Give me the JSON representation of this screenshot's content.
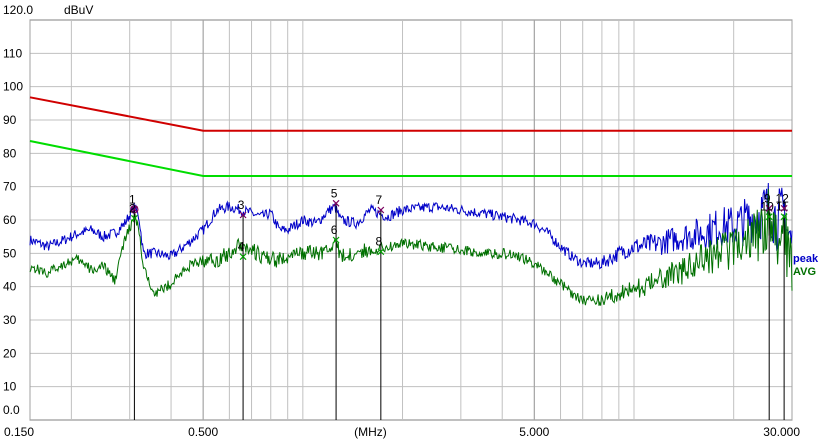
{
  "chart_data": {
    "type": "line",
    "ylabel": "dBuV",
    "xlabel": "(MHz)",
    "x_scale": "log",
    "xlim": [
      0.15,
      30.0
    ],
    "ylim": [
      0.0,
      120.0
    ],
    "y_ticks": [
      "0.0",
      "10",
      "20",
      "30",
      "40",
      "50",
      "60",
      "70",
      "80",
      "90",
      "100",
      "110",
      "120.0"
    ],
    "x_tick_labels": [
      {
        "value": 0.15,
        "label": "0.150"
      },
      {
        "value": 0.5,
        "label": "0.500"
      },
      {
        "value": 1.6,
        "label": "(MHz)"
      },
      {
        "value": 5.0,
        "label": "5.000"
      },
      {
        "value": 30.0,
        "label": "30.000"
      }
    ],
    "grid": true,
    "limits": [
      {
        "color": "#d00000",
        "points": [
          [
            0.15,
            96.8
          ],
          [
            0.5,
            86.8
          ],
          [
            30.0,
            86.8
          ]
        ]
      },
      {
        "color": "#00dd00",
        "points": [
          [
            0.15,
            83.7
          ],
          [
            0.5,
            73.2
          ],
          [
            30.0,
            73.2
          ]
        ]
      }
    ],
    "series": [
      {
        "name": "peak",
        "color": "#0000c8",
        "points": [
          [
            0.15,
            54
          ],
          [
            0.17,
            52
          ],
          [
            0.19,
            54
          ],
          [
            0.21,
            56
          ],
          [
            0.23,
            57
          ],
          [
            0.25,
            55
          ],
          [
            0.27,
            56
          ],
          [
            0.29,
            59
          ],
          [
            0.31,
            64
          ],
          [
            0.32,
            61
          ],
          [
            0.33,
            50
          ],
          [
            0.36,
            50
          ],
          [
            0.4,
            49
          ],
          [
            0.45,
            53
          ],
          [
            0.5,
            57
          ],
          [
            0.55,
            63
          ],
          [
            0.6,
            64
          ],
          [
            0.65,
            63
          ],
          [
            0.7,
            62
          ],
          [
            0.75,
            61
          ],
          [
            0.8,
            62
          ],
          [
            0.85,
            57
          ],
          [
            0.9,
            57
          ],
          [
            1.0,
            60
          ],
          [
            1.1,
            59
          ],
          [
            1.2,
            63
          ],
          [
            1.25,
            64
          ],
          [
            1.3,
            60
          ],
          [
            1.45,
            59
          ],
          [
            1.6,
            63
          ],
          [
            1.8,
            61
          ],
          [
            2.0,
            63
          ],
          [
            2.5,
            64
          ],
          [
            3.0,
            63
          ],
          [
            3.5,
            62
          ],
          [
            4.0,
            61
          ],
          [
            4.5,
            60
          ],
          [
            5.0,
            59
          ],
          [
            5.5,
            56
          ],
          [
            6.0,
            52
          ],
          [
            6.5,
            49
          ],
          [
            7.0,
            47
          ],
          [
            8.0,
            47
          ],
          [
            9.0,
            50
          ],
          [
            10.0,
            52
          ],
          [
            12.0,
            53
          ],
          [
            14.0,
            55
          ],
          [
            16.0,
            56
          ],
          [
            18.0,
            58
          ],
          [
            20.0,
            58
          ],
          [
            22.0,
            60
          ],
          [
            24.0,
            62
          ],
          [
            25.5,
            64
          ],
          [
            27.0,
            60
          ],
          [
            28.0,
            61
          ],
          [
            28.5,
            64
          ],
          [
            29.0,
            57
          ],
          [
            30.0,
            52
          ]
        ]
      },
      {
        "name": "AVG",
        "color": "#007000",
        "points": [
          [
            0.15,
            46
          ],
          [
            0.17,
            44
          ],
          [
            0.19,
            47
          ],
          [
            0.21,
            48
          ],
          [
            0.23,
            45
          ],
          [
            0.25,
            46
          ],
          [
            0.27,
            42
          ],
          [
            0.29,
            54
          ],
          [
            0.31,
            61
          ],
          [
            0.32,
            57
          ],
          [
            0.33,
            45
          ],
          [
            0.36,
            38
          ],
          [
            0.4,
            41
          ],
          [
            0.45,
            46
          ],
          [
            0.5,
            48
          ],
          [
            0.55,
            48
          ],
          [
            0.6,
            50
          ],
          [
            0.65,
            53
          ],
          [
            0.7,
            51
          ],
          [
            0.75,
            49
          ],
          [
            0.8,
            48
          ],
          [
            0.85,
            48
          ],
          [
            0.9,
            49
          ],
          [
            1.0,
            50
          ],
          [
            1.1,
            50
          ],
          [
            1.2,
            51
          ],
          [
            1.25,
            54
          ],
          [
            1.3,
            49
          ],
          [
            1.45,
            50
          ],
          [
            1.6,
            51
          ],
          [
            1.8,
            52
          ],
          [
            2.0,
            53
          ],
          [
            2.5,
            52
          ],
          [
            3.0,
            51
          ],
          [
            3.5,
            50
          ],
          [
            4.0,
            50
          ],
          [
            4.5,
            49
          ],
          [
            5.0,
            47
          ],
          [
            5.5,
            44
          ],
          [
            6.0,
            41
          ],
          [
            6.5,
            38
          ],
          [
            7.0,
            36
          ],
          [
            8.0,
            36
          ],
          [
            9.0,
            38
          ],
          [
            10.0,
            39
          ],
          [
            12.0,
            42
          ],
          [
            14.0,
            45
          ],
          [
            16.0,
            48
          ],
          [
            18.0,
            50
          ],
          [
            20.0,
            52
          ],
          [
            22.0,
            54
          ],
          [
            24.0,
            56
          ],
          [
            25.5,
            61
          ],
          [
            27.0,
            55
          ],
          [
            28.0,
            54
          ],
          [
            28.5,
            61
          ],
          [
            29.0,
            52
          ],
          [
            30.0,
            48
          ]
        ]
      }
    ],
    "markers": [
      {
        "label": "1",
        "x": 0.31,
        "y": 63.2,
        "sym": "o",
        "color": "#7a0060"
      },
      {
        "label": "2",
        "x": 0.31,
        "y": 60.5,
        "sym": "x",
        "color": "#00a000"
      },
      {
        "label": "3",
        "x": 0.66,
        "y": 61.5,
        "sym": "x",
        "color": "#7a0060"
      },
      {
        "label": "4",
        "x": 0.66,
        "y": 49.0,
        "sym": "x",
        "color": "#00a000"
      },
      {
        "label": "5",
        "x": 1.26,
        "y": 65.0,
        "sym": "x",
        "color": "#7a0060"
      },
      {
        "label": "6",
        "x": 1.26,
        "y": 54.0,
        "sym": "x",
        "color": "#00a000"
      },
      {
        "label": "7",
        "x": 1.72,
        "y": 63.0,
        "sym": "x",
        "color": "#7a0060"
      },
      {
        "label": "8",
        "x": 1.72,
        "y": 50.5,
        "sym": "x",
        "color": "#00a000"
      },
      {
        "label": "9",
        "x": 25.6,
        "y": 63.5,
        "sym": "x",
        "color": "#7a0060"
      },
      {
        "label": "10",
        "x": 25.6,
        "y": 61.0,
        "sym": "x",
        "color": "#00a000"
      },
      {
        "label": "11",
        "x": 28.4,
        "y": 61.0,
        "sym": "x",
        "color": "#00a000"
      },
      {
        "label": "12",
        "x": 28.4,
        "y": 63.5,
        "sym": "x",
        "color": "#7a0060"
      }
    ]
  }
}
